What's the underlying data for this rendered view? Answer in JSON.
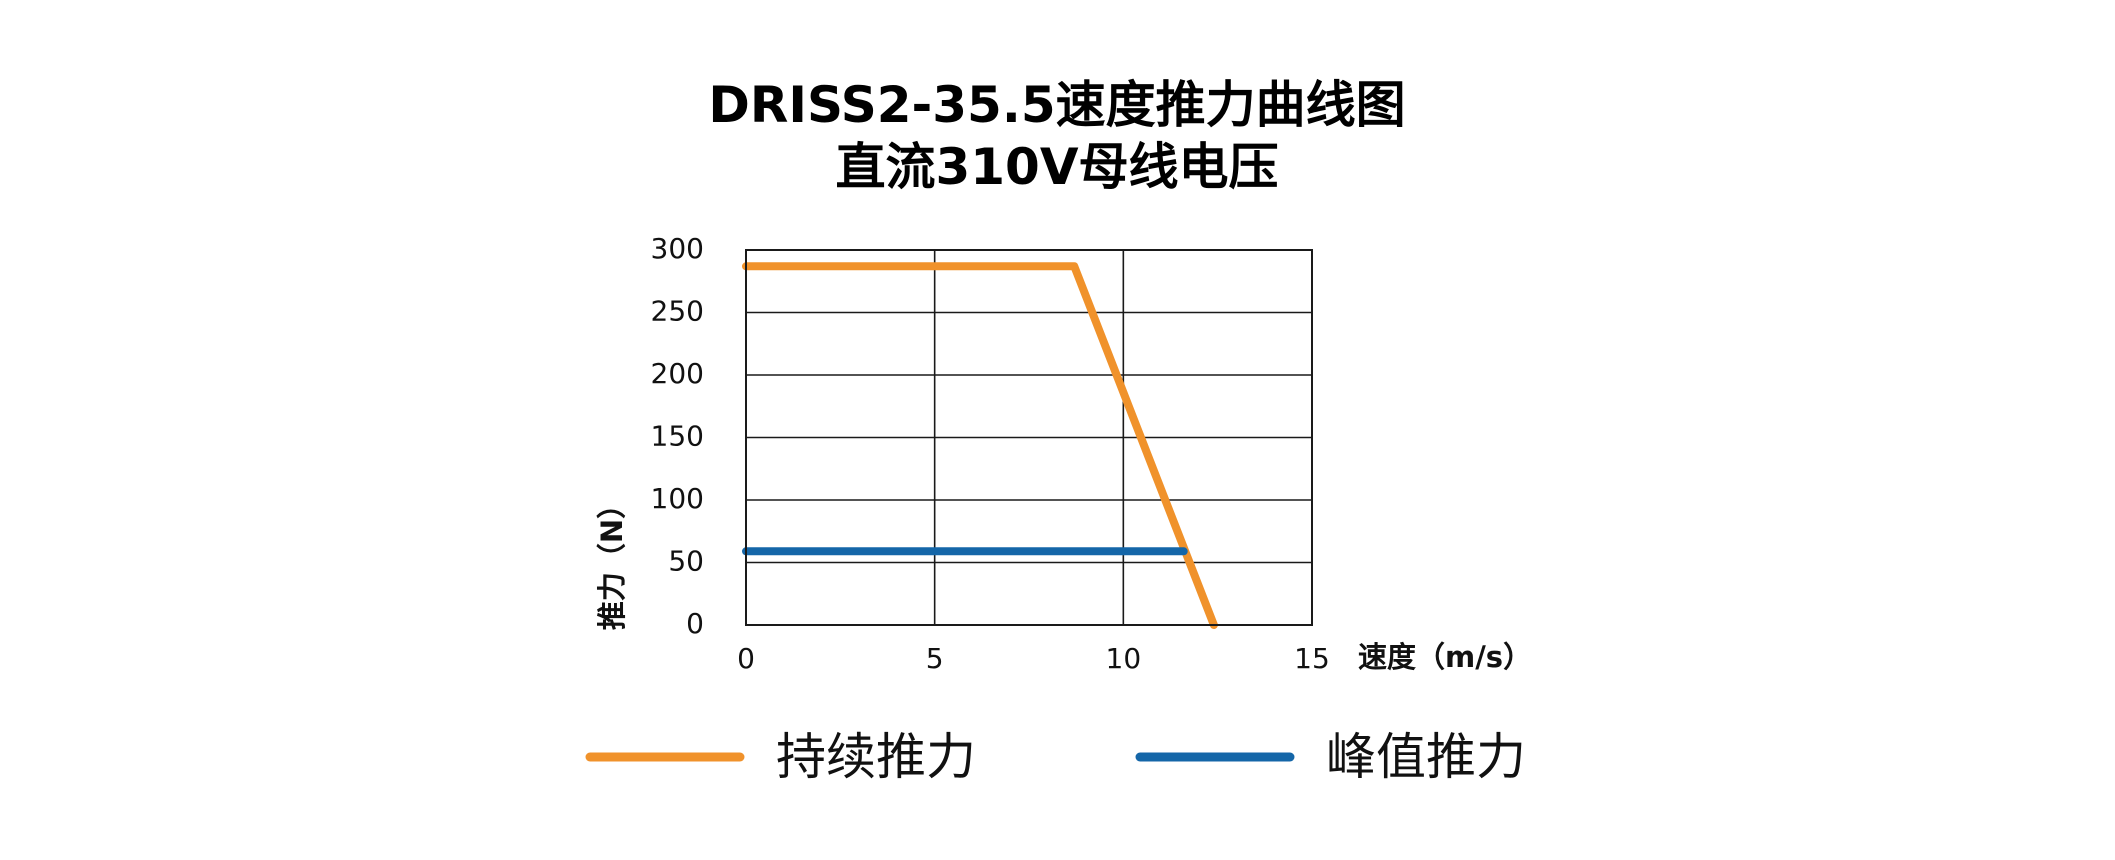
{
  "chart_data": {
    "type": "line",
    "title": "DRISS2-35.5速度推力曲线图",
    "subtitle": "直流310V母线电压",
    "xlabel": "速度（m/s）",
    "ylabel": "推力（N）",
    "xlim": [
      0,
      15
    ],
    "ylim": [
      0,
      300
    ],
    "x_ticks": [
      0,
      5,
      10,
      15
    ],
    "y_ticks": [
      0,
      50,
      100,
      150,
      200,
      250,
      300
    ],
    "x_tick_labels": [
      "0",
      "5",
      "10",
      "15"
    ],
    "y_tick_labels": [
      "0",
      "50",
      "100",
      "150",
      "200",
      "250",
      "300"
    ],
    "grid": true,
    "legend_position": "bottom",
    "series": [
      {
        "name": "持续推力",
        "color": "#f0922b",
        "points": [
          [
            0,
            287
          ],
          [
            8.7,
            287
          ],
          [
            12.4,
            0
          ]
        ]
      },
      {
        "name": "峰值推力",
        "color": "#1466a8",
        "points": [
          [
            0,
            59
          ],
          [
            11.6,
            59
          ]
        ]
      }
    ]
  }
}
